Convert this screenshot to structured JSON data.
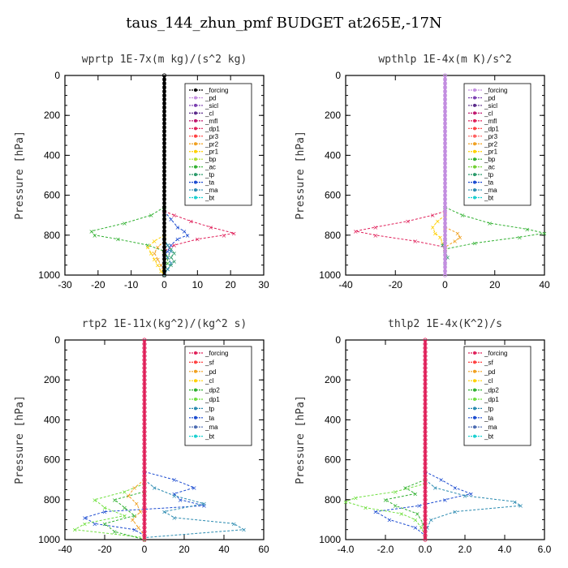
{
  "figure_title": "taus_144_zhun_pmf  BUDGET at265E,-17N",
  "chart_data": [
    {
      "type": "line",
      "title": "wprtp   1E-7x(m kg)/(s^2 kg)",
      "ylabel": "Pressure [hPa]",
      "xlim": [
        -30,
        30
      ],
      "ylim": [
        0,
        1000
      ],
      "xticks": [
        -30,
        -20,
        -10,
        0,
        10,
        20,
        30
      ],
      "xticklabels": [
        "-30",
        "-20",
        "-10",
        "0",
        "10",
        "20",
        "30"
      ],
      "yticks": [
        0,
        200,
        400,
        600,
        800,
        1000
      ],
      "legend_entries": [
        "_forcing",
        "_pd",
        "_sicl",
        "_cl",
        "_mfl",
        "_dp1",
        "_pr3",
        "_pr2",
        "_pr1",
        "_bp",
        "_ac",
        "_tp",
        "_ta",
        "_ma",
        "_bt"
      ],
      "legend_colors": [
        "#000000",
        "#c38ee0",
        "#7a3fb0",
        "#5a2a8a",
        "#c0176e",
        "#e0205a",
        "#ff4040",
        "#f0a020",
        "#ffd000",
        "#b0e030",
        "#30b030",
        "#2a9a6a",
        "#1a4ad0",
        "#2a8ab0",
        "#1ad0d0"
      ],
      "series": [
        {
          "name": "_ta",
          "color": "#1a4ad0",
          "pressure": [
            680,
            720,
            760,
            780,
            800,
            820,
            850,
            880,
            900,
            940,
            980
          ],
          "values": [
            0,
            2,
            4,
            6,
            7,
            4,
            2,
            1,
            0,
            0,
            0
          ]
        },
        {
          "name": "_dp1",
          "color": "#e0205a",
          "pressure": [
            680,
            700,
            730,
            760,
            790,
            800,
            820,
            850,
            880
          ],
          "values": [
            0,
            3,
            8,
            14,
            21,
            18,
            10,
            3,
            0
          ]
        },
        {
          "name": "_bp",
          "color": "#30b030",
          "pressure": [
            660,
            700,
            740,
            780,
            800,
            820,
            850,
            880,
            910,
            940,
            980
          ],
          "values": [
            0,
            -4,
            -12,
            -22,
            -21,
            -14,
            -5,
            0,
            1,
            1,
            0
          ]
        },
        {
          "name": "_pr1",
          "color": "#ffd000",
          "pressure": [
            800,
            830,
            860,
            890,
            920,
            950,
            980,
            1000
          ],
          "values": [
            0,
            -3,
            -5,
            -4,
            -3,
            -2,
            -1,
            0
          ]
        },
        {
          "name": "_pr2",
          "color": "#f0a020",
          "pressure": [
            830,
            860,
            890,
            920,
            950,
            990
          ],
          "values": [
            0,
            -2,
            -3,
            -2,
            -1,
            0
          ]
        },
        {
          "name": "_tp",
          "color": "#2a9a6a",
          "pressure": [
            850,
            870,
            890,
            910,
            930,
            950,
            970,
            990
          ],
          "values": [
            1,
            2,
            3,
            2,
            3,
            2,
            1,
            0
          ]
        },
        {
          "name": "_ma",
          "color": "#2a8ab0",
          "pressure": [
            820,
            850,
            880,
            910,
            940,
            970,
            1000
          ],
          "values": [
            0,
            1,
            2,
            1,
            2,
            1,
            0
          ]
        },
        {
          "name": "_forcing",
          "color": "#000000",
          "pressure": [
            0,
            1000
          ],
          "values": [
            0,
            0
          ]
        }
      ]
    },
    {
      "type": "line",
      "title": "wpthlp   1E-4x(m K)/s^2",
      "ylabel": "Pressure [hPa]",
      "xlim": [
        -40,
        40
      ],
      "ylim": [
        0,
        1000
      ],
      "xticks": [
        -40,
        -20,
        0,
        20,
        40
      ],
      "xticklabels": [
        "-40",
        "-20",
        "0",
        "20",
        "40"
      ],
      "yticks": [
        0,
        200,
        400,
        600,
        800,
        1000
      ],
      "legend_entries": [
        "_forcing",
        "_pd",
        "_sicl",
        "_cl",
        "_mfl",
        "_dp1",
        "_pr3",
        "_pr2",
        "_pr1",
        "_bp",
        "_ac",
        "_tp",
        "_ta",
        "_ma",
        "_bt"
      ],
      "legend_colors": [
        "#c38ee0",
        "#7a3fb0",
        "#5a2a8a",
        "#c0176e",
        "#e0205a",
        "#ff4040",
        "#ff6060",
        "#f0a020",
        "#ffd000",
        "#30b030",
        "#70d030",
        "#2a9a6a",
        "#1a4ad0",
        "#2a8ab0",
        "#1ad0d0"
      ],
      "series": [
        {
          "name": "_dp1",
          "color": "#e0205a",
          "pressure": [
            680,
            700,
            730,
            760,
            780,
            800,
            830,
            860
          ],
          "values": [
            0,
            -5,
            -15,
            -28,
            -36,
            -28,
            -12,
            0
          ]
        },
        {
          "name": "_bp",
          "color": "#30b030",
          "pressure": [
            660,
            700,
            740,
            770,
            790,
            810,
            840,
            870
          ],
          "values": [
            0,
            7,
            18,
            33,
            40,
            30,
            12,
            0
          ]
        },
        {
          "name": "_pr1",
          "color": "#ffd000",
          "pressure": [
            700,
            730,
            760,
            790,
            810,
            840,
            870
          ],
          "values": [
            0,
            -3,
            -5,
            -4,
            -2,
            -1,
            0
          ]
        },
        {
          "name": "_pr2",
          "color": "#f0a020",
          "pressure": [
            760,
            790,
            810,
            830,
            860
          ],
          "values": [
            0,
            5,
            6,
            4,
            0
          ]
        },
        {
          "name": "_tp",
          "color": "#2a9a6a",
          "pressure": [
            820,
            850,
            880,
            910,
            940
          ],
          "values": [
            0,
            -1,
            0,
            1,
            0
          ]
        },
        {
          "name": "_forcing",
          "color": "#c38ee0",
          "pressure": [
            0,
            1000
          ],
          "values": [
            0,
            0
          ]
        }
      ]
    },
    {
      "type": "line",
      "title": "rtp2   1E-11x(kg^2)/(kg^2 s)",
      "ylabel": "Pressure [hPa]",
      "xlim": [
        -40,
        60
      ],
      "ylim": [
        0,
        1000
      ],
      "xticks": [
        -40,
        -20,
        0,
        20,
        40,
        60
      ],
      "xticklabels": [
        "-40",
        "-20",
        "0",
        "20",
        "40",
        "60"
      ],
      "yticks": [
        0,
        200,
        400,
        600,
        800,
        1000
      ],
      "legend_entries": [
        "_forcing",
        "_sf",
        "_pd",
        "_cl",
        "_dp2",
        "_dp1",
        "_tp",
        "_ta",
        "_ma",
        "_bt"
      ],
      "legend_colors": [
        "#e0205a",
        "#ff4040",
        "#f0a020",
        "#ffd000",
        "#30b030",
        "#70e040",
        "#2a8ab0",
        "#1a4ad0",
        "#4a6ab0",
        "#1ad0d0"
      ],
      "series": [
        {
          "name": "_ta",
          "color": "#1a4ad0",
          "pressure": [
            660,
            700,
            740,
            770,
            800,
            830,
            860,
            890,
            920,
            950,
            980
          ],
          "values": [
            0,
            15,
            25,
            15,
            18,
            30,
            -20,
            -30,
            -25,
            -5,
            0
          ]
        },
        {
          "name": "_ma",
          "color": "#2a8ab0",
          "pressure": [
            700,
            740,
            780,
            820,
            860,
            890,
            920,
            950,
            990
          ],
          "values": [
            0,
            5,
            15,
            30,
            10,
            15,
            45,
            50,
            0
          ]
        },
        {
          "name": "_dp1",
          "color": "#70e040",
          "pressure": [
            720,
            760,
            800,
            840,
            880,
            920,
            950,
            990
          ],
          "values": [
            0,
            -10,
            -25,
            -20,
            -10,
            -30,
            -35,
            0
          ]
        },
        {
          "name": "_dp2",
          "color": "#30b030",
          "pressure": [
            760,
            800,
            840,
            880,
            920,
            960,
            1000
          ],
          "values": [
            0,
            -15,
            -10,
            -5,
            -20,
            -15,
            0
          ]
        },
        {
          "name": "_pd",
          "color": "#f0a020",
          "pressure": [
            700,
            740,
            780,
            820,
            860,
            900,
            940,
            980
          ],
          "values": [
            0,
            -5,
            -8,
            -4,
            -2,
            -6,
            -3,
            0
          ]
        },
        {
          "name": "_forcing",
          "color": "#e0205a",
          "pressure": [
            0,
            1000
          ],
          "values": [
            0,
            0
          ]
        }
      ]
    },
    {
      "type": "line",
      "title": "thlp2   1E-4x(K^2)/s",
      "ylabel": "Pressure [hPa]",
      "xlim": [
        -4,
        6
      ],
      "ylim": [
        0,
        1000
      ],
      "xticks": [
        -4,
        -2,
        0,
        2,
        4,
        6
      ],
      "xticklabels": [
        "-4.0",
        "-2.0",
        "0.0",
        "2.0",
        "4.0",
        "6.0"
      ],
      "yticks": [
        0,
        200,
        400,
        600,
        800,
        1000
      ],
      "legend_entries": [
        "_forcing",
        "_sf",
        "_pd",
        "_cl",
        "_dp2",
        "_dp1",
        "_tp",
        "_ta",
        "_ma",
        "_bt"
      ],
      "legend_colors": [
        "#e0205a",
        "#ff4040",
        "#f0a020",
        "#ffd000",
        "#30b030",
        "#70e040",
        "#2a8ab0",
        "#1a4ad0",
        "#4a6ab0",
        "#1ad0d0"
      ],
      "series": [
        {
          "name": "_ta",
          "color": "#1a4ad0",
          "pressure": [
            660,
            700,
            740,
            770,
            800,
            830,
            860,
            900,
            940,
            980
          ],
          "values": [
            0,
            0.8,
            1.5,
            2.3,
            1.0,
            -0.3,
            -2.5,
            -1.8,
            -0.5,
            0
          ]
        },
        {
          "name": "_ma",
          "color": "#2a8ab0",
          "pressure": [
            700,
            740,
            780,
            810,
            830,
            860,
            900,
            940,
            980
          ],
          "values": [
            0,
            0.5,
            2.0,
            4.5,
            4.8,
            1.5,
            0.3,
            0.1,
            0
          ]
        },
        {
          "name": "_dp1",
          "color": "#70e040",
          "pressure": [
            720,
            760,
            790,
            810,
            840,
            870,
            900,
            940,
            980
          ],
          "values": [
            0,
            -1.5,
            -3.5,
            -4.0,
            -3.0,
            -1.2,
            -0.5,
            -0.2,
            0
          ]
        },
        {
          "name": "_dp2",
          "color": "#30b030",
          "pressure": [
            700,
            740,
            770,
            800,
            830,
            870,
            920,
            980
          ],
          "values": [
            0,
            -1.0,
            -0.5,
            -2.0,
            -1.5,
            -0.4,
            -0.1,
            0
          ]
        },
        {
          "name": "_forcing",
          "color": "#e0205a",
          "pressure": [
            0,
            1000
          ],
          "values": [
            0,
            0
          ]
        }
      ]
    }
  ]
}
